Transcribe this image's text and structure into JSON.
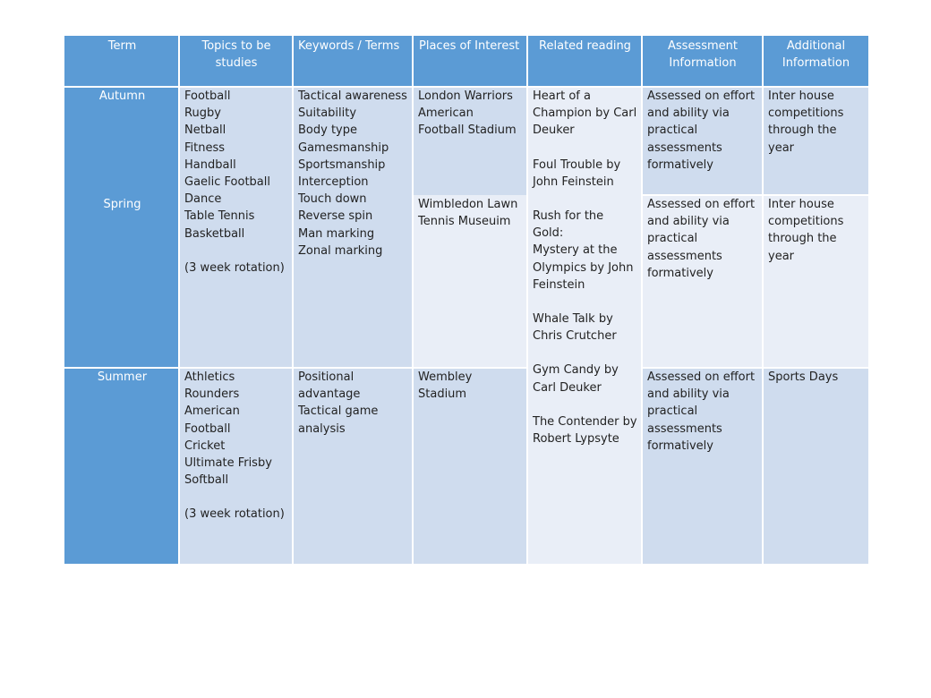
{
  "headers": {
    "term": "Term",
    "topics": "Topics to be\nstudies",
    "keywords": "Keywords / Terms",
    "places": "Places of Interest",
    "reading": "Related reading",
    "assessment": "Assessment\nInformation",
    "additional": "Additional\nInformation"
  },
  "terms": {
    "autumn": "Autumn",
    "spring": "Spring",
    "summer": "Summer"
  },
  "autumn_spring": {
    "topics": "Football\nRugby\nNetball\nFitness\nHandball\nGaelic Football\nDance\nTable Tennis\nBasketball",
    "topics_note": "(3 week rotation)",
    "keywords": "Tactical awareness\nSuitability\nBody type\nGamesmanship\nSportsmanship\nInterception\nTouch down\nReverse spin\nMan marking\nZonal marking",
    "places_autumn": "London Warriors\nAmerican\nFootball Stadium",
    "places_spring": "Wimbledon Lawn\nTennis Museuim",
    "assessment_autumn": "Assessed on effort\nand ability via\npractical\nassessments\nformatively",
    "assessment_spring": "Assessed on effort\nand ability via\npractical\nassessments\nformatively",
    "additional_autumn": "Inter house\ncompetitions\nthrough the\nyear",
    "additional_spring": "Inter house\ncompetitions\nthrough the\nyear"
  },
  "reading": {
    "book1": "Heart of a\nChampion by Carl\nDeuker",
    "book2": "Foul Trouble by\nJohn Feinstein",
    "book3": "Rush for the Gold:\nMystery at the\nOlympics by John\nFeinstein",
    "book4": "Whale Talk by\nChris Crutcher",
    "book5": "Gym Candy by\nCarl Deuker",
    "book6": "The Contender by\nRobert Lypsyte"
  },
  "summer": {
    "topics": "Athletics\nRounders\nAmerican\nFootball\nCricket\nUltimate Frisby\nSoftball",
    "topics_note": "(3 week rotation)",
    "keywords": "Positional\nadvantage\nTactical game\nanalysis",
    "places": "Wembley\nStadium",
    "assessment": "Assessed on effort\nand ability via\npractical\nassessments\nformatively",
    "additional": "Sports Days"
  },
  "colors": {
    "header_blue": "#5b9bd5",
    "cell_dark": "#cfdcee",
    "cell_light": "#e9eef7"
  }
}
